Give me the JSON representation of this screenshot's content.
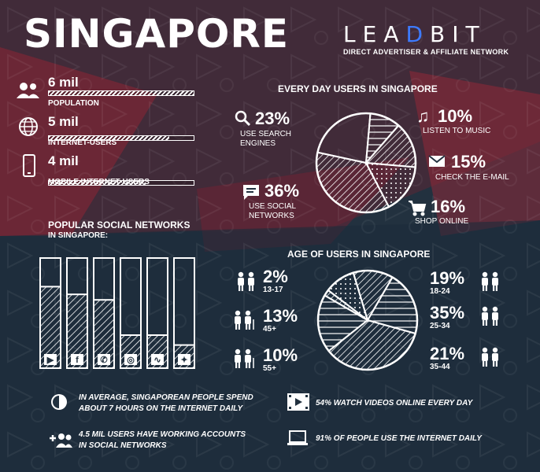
{
  "title": "SINGAPORE",
  "brand": {
    "logo": "LEADBIT",
    "tagline": "DIRECT ADVERTISER & AFFILIATE NETWORK",
    "accent": "#3d7bff"
  },
  "colors": {
    "background": "#22313f",
    "flag_red": "#b0283a"
  },
  "stats": [
    {
      "icon": "users-icon",
      "value": "6 mil",
      "label": "POPULATION",
      "fill": 1.0
    },
    {
      "icon": "globe-icon",
      "value": "5 mil",
      "label": "INTERNET-USERS",
      "fill": 0.83
    },
    {
      "icon": "phone-icon",
      "value": "4 mil",
      "label": "MOBILE INTERNET-USERS",
      "fill": 0.67
    }
  ],
  "social": {
    "title": "POPULAR SOCIAL NETWORKS",
    "subtitle": "IN SINGAPORE:",
    "networks": [
      {
        "name": "youtube",
        "glyph": "▶",
        "fill": 0.74
      },
      {
        "name": "facebook",
        "glyph": "f",
        "fill": 0.67
      },
      {
        "name": "whatsapp",
        "glyph": "✆",
        "fill": 0.62
      },
      {
        "name": "instagram",
        "glyph": "◎",
        "fill": 0.3
      },
      {
        "name": "messenger",
        "glyph": "∿",
        "fill": 0.3
      },
      {
        "name": "twitter",
        "glyph": "✦",
        "fill": 0.21
      }
    ]
  },
  "daily": {
    "title": "EVERY DAY USERS IN SINGAPORE",
    "items": [
      {
        "pct": "23%",
        "label_lines": [
          "USE SEARCH",
          "ENGINES"
        ],
        "icon": "search-icon"
      },
      {
        "pct": "10%",
        "label_lines": [
          "LISTEN TO MUSIC"
        ],
        "icon": "music-icon"
      },
      {
        "pct": "15%",
        "label_lines": [
          "CHECK THE E-MAIL"
        ],
        "icon": "mail-icon"
      },
      {
        "pct": "16%",
        "label_lines": [
          "SHOP ONLINE"
        ],
        "icon": "cart-icon"
      },
      {
        "pct": "36%",
        "label_lines": [
          "USE SOCIAL",
          "NETWORKS"
        ],
        "icon": "chat-icon"
      }
    ]
  },
  "age": {
    "title": "AGE OF USERS IN SINGAPORE",
    "items": [
      {
        "pct": "2%",
        "range": "13-17"
      },
      {
        "pct": "13%",
        "range": "45+"
      },
      {
        "pct": "10%",
        "range": "55+"
      },
      {
        "pct": "19%",
        "range": "18-24"
      },
      {
        "pct": "35%",
        "range": "25-34"
      },
      {
        "pct": "21%",
        "range": "35-44"
      }
    ]
  },
  "chart_data": [
    {
      "type": "pie",
      "title": "EVERY DAY USERS IN SINGAPORE",
      "labels": [
        "LISTEN TO MUSIC",
        "CHECK THE E-MAIL",
        "SHOP ONLINE",
        "USE SOCIAL NETWORKS",
        "USE SEARCH ENGINES"
      ],
      "values": [
        10,
        15,
        16,
        36,
        23
      ]
    },
    {
      "type": "pie",
      "title": "AGE OF USERS IN SINGAPORE",
      "labels": [
        "13-17",
        "55+",
        "45+",
        "35-44",
        "25-34",
        "18-24"
      ],
      "values": [
        2,
        10,
        13,
        21,
        35,
        19
      ]
    }
  ],
  "footer": [
    {
      "icon": "clock-icon",
      "lines": [
        "IN AVERAGE, SINGAPOREAN PEOPLE SPEND",
        "ABOUT 7 HOURS ON THE INTERNET DAILY"
      ]
    },
    {
      "icon": "video-icon",
      "lines": [
        "54% WATCH VIDEOS ONLINE EVERY DAY"
      ]
    },
    {
      "icon": "add-user-icon",
      "lines": [
        "4.5 MIL USERS HAVE WORKING ACCOUNTS",
        "IN SOCIAL NETWORKS"
      ]
    },
    {
      "icon": "laptop-icon",
      "lines": [
        "91% OF PEOPLE USE THE INTERNET DAILY"
      ]
    }
  ]
}
